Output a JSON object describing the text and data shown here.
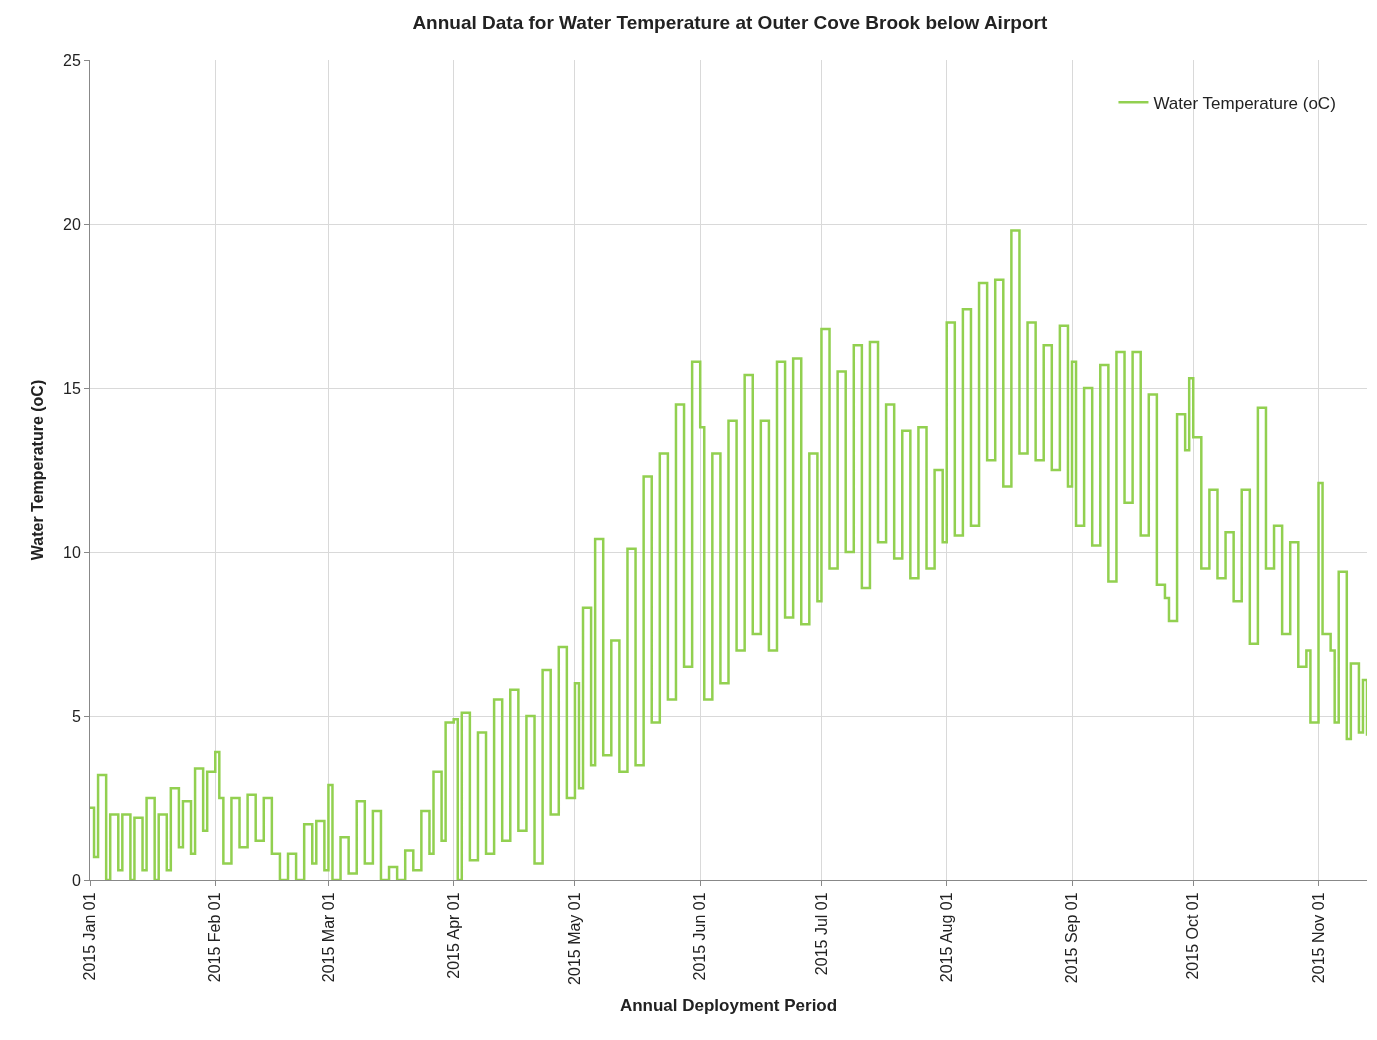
{
  "chart_data": {
    "type": "step",
    "title": "Annual Data for Water Temperature at Outer Cove Brook below Airport",
    "xlabel": "Annual Deployment Period",
    "ylabel": "Water Temperature (oC)",
    "x": [
      "2015-01-01",
      "2015-01-02",
      "2015-01-03",
      "2015-01-05",
      "2015-01-06",
      "2015-01-08",
      "2015-01-09",
      "2015-01-11",
      "2015-01-12",
      "2015-01-14",
      "2015-01-15",
      "2015-01-17",
      "2015-01-18",
      "2015-01-20",
      "2015-01-21",
      "2015-01-23",
      "2015-01-24",
      "2015-01-26",
      "2015-01-27",
      "2015-01-29",
      "2015-01-30",
      "2015-02-01",
      "2015-02-02",
      "2015-02-03",
      "2015-02-05",
      "2015-02-07",
      "2015-02-09",
      "2015-02-11",
      "2015-02-13",
      "2015-02-15",
      "2015-02-17",
      "2015-02-19",
      "2015-02-21",
      "2015-02-23",
      "2015-02-25",
      "2015-02-26",
      "2015-02-28",
      "2015-03-01",
      "2015-03-02",
      "2015-03-04",
      "2015-03-06",
      "2015-03-08",
      "2015-03-10",
      "2015-03-12",
      "2015-03-14",
      "2015-03-16",
      "2015-03-18",
      "2015-03-20",
      "2015-03-22",
      "2015-03-24",
      "2015-03-26",
      "2015-03-27",
      "2015-03-29",
      "2015-03-30",
      "2015-04-01",
      "2015-04-02",
      "2015-04-03",
      "2015-04-05",
      "2015-04-07",
      "2015-04-09",
      "2015-04-11",
      "2015-04-13",
      "2015-04-15",
      "2015-04-17",
      "2015-04-19",
      "2015-04-21",
      "2015-04-23",
      "2015-04-25",
      "2015-04-27",
      "2015-04-29",
      "2015-05-01",
      "2015-05-02",
      "2015-05-03",
      "2015-05-05",
      "2015-05-06",
      "2015-05-08",
      "2015-05-10",
      "2015-05-12",
      "2015-05-14",
      "2015-05-16",
      "2015-05-18",
      "2015-05-20",
      "2015-05-22",
      "2015-05-24",
      "2015-05-26",
      "2015-05-28",
      "2015-05-30",
      "2015-06-01",
      "2015-06-02",
      "2015-06-04",
      "2015-06-06",
      "2015-06-08",
      "2015-06-10",
      "2015-06-12",
      "2015-06-14",
      "2015-06-16",
      "2015-06-18",
      "2015-06-20",
      "2015-06-22",
      "2015-06-24",
      "2015-06-26",
      "2015-06-28",
      "2015-06-30",
      "2015-07-01",
      "2015-07-03",
      "2015-07-05",
      "2015-07-07",
      "2015-07-09",
      "2015-07-11",
      "2015-07-13",
      "2015-07-15",
      "2015-07-17",
      "2015-07-19",
      "2015-07-21",
      "2015-07-23",
      "2015-07-25",
      "2015-07-27",
      "2015-07-29",
      "2015-07-31",
      "2015-08-01",
      "2015-08-03",
      "2015-08-05",
      "2015-08-07",
      "2015-08-09",
      "2015-08-11",
      "2015-08-13",
      "2015-08-15",
      "2015-08-17",
      "2015-08-19",
      "2015-08-21",
      "2015-08-23",
      "2015-08-25",
      "2015-08-27",
      "2015-08-29",
      "2015-08-31",
      "2015-09-01",
      "2015-09-02",
      "2015-09-04",
      "2015-09-06",
      "2015-09-08",
      "2015-09-10",
      "2015-09-12",
      "2015-09-14",
      "2015-09-16",
      "2015-09-18",
      "2015-09-20",
      "2015-09-22",
      "2015-09-24",
      "2015-09-25",
      "2015-09-27",
      "2015-09-29",
      "2015-09-30",
      "2015-10-01",
      "2015-10-03",
      "2015-10-05",
      "2015-10-07",
      "2015-10-09",
      "2015-10-11",
      "2015-10-13",
      "2015-10-15",
      "2015-10-17",
      "2015-10-19",
      "2015-10-21",
      "2015-10-23",
      "2015-10-25",
      "2015-10-27",
      "2015-10-29",
      "2015-10-30",
      "2015-11-01",
      "2015-11-02",
      "2015-11-04",
      "2015-11-05",
      "2015-11-06",
      "2015-11-08",
      "2015-11-09",
      "2015-11-11",
      "2015-11-12",
      "2015-11-13"
    ],
    "series": [
      {
        "name": "Water Temperature (oC)",
        "color": "#92d050",
        "values": [
          2.2,
          0.7,
          3.2,
          0,
          2.0,
          0.3,
          2.0,
          0,
          1.9,
          0.3,
          2.5,
          0,
          2.0,
          0.3,
          2.8,
          1.0,
          2.4,
          0.8,
          3.4,
          1.5,
          3.3,
          3.9,
          2.5,
          0.5,
          2.5,
          1.0,
          2.6,
          1.2,
          2.5,
          0.8,
          0,
          0.8,
          0,
          1.7,
          0.5,
          1.8,
          0.3,
          2.9,
          0,
          1.3,
          0.2,
          2.4,
          0.5,
          2.1,
          0,
          0.4,
          0,
          0.9,
          0.3,
          2.1,
          0.8,
          3.3,
          1.2,
          4.8,
          4.9,
          0,
          5.1,
          0.6,
          4.5,
          0.8,
          5.5,
          1.2,
          5.8,
          1.5,
          5.0,
          0.5,
          6.4,
          2.0,
          7.1,
          2.5,
          6.0,
          2.8,
          8.3,
          3.5,
          10.4,
          3.8,
          7.3,
          3.3,
          10.1,
          3.5,
          12.3,
          4.8,
          13.0,
          5.5,
          14.5,
          6.5,
          15.8,
          13.8,
          5.5,
          13.0,
          6.0,
          14.0,
          7.0,
          15.4,
          7.5,
          14.0,
          7.0,
          15.8,
          8.0,
          15.9,
          7.8,
          13.0,
          8.5,
          16.8,
          9.5,
          15.5,
          10.0,
          16.3,
          8.9,
          16.4,
          10.3,
          14.5,
          9.8,
          13.7,
          9.2,
          13.8,
          9.5,
          12.5,
          10.3,
          17.0,
          10.5,
          17.4,
          10.8,
          18.2,
          12.8,
          18.3,
          12.0,
          19.8,
          13.0,
          17.0,
          12.8,
          16.3,
          12.5,
          16.9,
          12.0,
          15.8,
          10.8,
          15.0,
          10.2,
          15.7,
          9.1,
          16.1,
          11.5,
          16.1,
          10.5,
          14.8,
          9.0,
          8.6,
          7.9,
          14.2,
          13.1,
          15.3,
          13.5,
          9.5,
          11.9,
          9.2,
          10.6,
          8.5,
          11.9,
          7.2,
          14.4,
          9.5,
          10.8,
          7.5,
          10.3,
          6.5,
          7.0,
          4.8,
          12.1,
          7.5,
          7.0,
          4.8,
          9.4,
          4.3,
          6.6,
          4.5,
          6.1,
          4.4
        ]
      }
    ],
    "xlim": [
      "2015-01-01",
      "2015-11-13"
    ],
    "xticks": [
      {
        "value": "2015-01-01",
        "label": "2015 Jan 01"
      },
      {
        "value": "2015-02-01",
        "label": "2015 Feb 01"
      },
      {
        "value": "2015-03-01",
        "label": "2015 Mar 01"
      },
      {
        "value": "2015-04-01",
        "label": "2015 Apr 01"
      },
      {
        "value": "2015-05-01",
        "label": "2015 May 01"
      },
      {
        "value": "2015-06-01",
        "label": "2015 Jun 01"
      },
      {
        "value": "2015-07-01",
        "label": "2015 Jul 01"
      },
      {
        "value": "2015-08-01",
        "label": "2015 Aug 01"
      },
      {
        "value": "2015-09-01",
        "label": "2015 Sep 01"
      },
      {
        "value": "2015-10-01",
        "label": "2015 Oct 01"
      },
      {
        "value": "2015-11-01",
        "label": "2015 Nov 01"
      }
    ],
    "ylim": [
      0,
      25
    ],
    "yticks": [
      0,
      5,
      10,
      15,
      20,
      25
    ],
    "grid": true,
    "legend": "top right"
  }
}
